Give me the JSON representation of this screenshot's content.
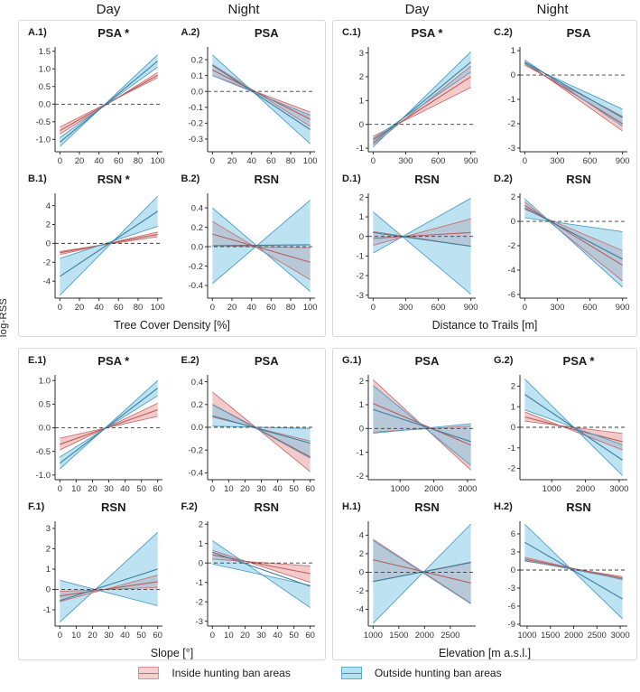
{
  "figure": {
    "ylabel": "log-RSS",
    "column_headers": [
      "Day",
      "Night",
      "Day",
      "Night"
    ],
    "band_styles": {
      "inside": {
        "fill": "rgba(224,128,128,0.42)",
        "stroke": "#cc7070",
        "center": "#b85c5c",
        "legend_fill": "#f6d0d0",
        "legend_stroke": "#dc9090",
        "legend_line": "#c96b6b"
      },
      "outside": {
        "fill": "rgba(124,199,232,0.50)",
        "stroke": "#4e9fc6",
        "center": "#3a7f9f",
        "legend_fill": "#b7e2f2",
        "legend_stroke": "#5aaecf",
        "legend_line": "#3f94bb"
      }
    },
    "legend": {
      "items": [
        {
          "group": "inside",
          "label": "Inside hunting ban areas"
        },
        {
          "group": "outside",
          "label": "Outside hunting ban areas"
        }
      ]
    }
  },
  "chart_data": [
    {
      "type": "ribbon",
      "xlabel": "Tree Cover Density [%]",
      "panels": [
        {
          "id": "A.1)",
          "title": "PSA *",
          "xlim": [
            0,
            100
          ],
          "xticks": [
            0,
            20,
            40,
            60,
            80,
            100
          ],
          "ylim": [
            -1.35,
            1.62
          ],
          "yticks": [
            "1.5",
            "1.0",
            "0.5",
            "0.0",
            "-0.5",
            "-1.0"
          ],
          "bands": [
            {
              "group": "inside",
              "left": [
                -0.65,
                -0.85
              ],
              "right": [
                0.9,
                0.75
              ],
              "center": [
                -0.75,
                0.82
              ]
            },
            {
              "group": "outside",
              "left": [
                -0.95,
                -1.2
              ],
              "right": [
                1.4,
                1.05
              ],
              "center": [
                -1.08,
                1.22
              ]
            }
          ]
        },
        {
          "id": "A.2)",
          "title": "PSA",
          "xlim": [
            0,
            100
          ],
          "xticks": [
            0,
            20,
            40,
            60,
            80,
            100
          ],
          "ylim": [
            -0.38,
            0.28
          ],
          "yticks": [
            "0.2",
            "0.1",
            "0.0",
            "-0.1",
            "-0.2",
            "-0.3"
          ],
          "bands": [
            {
              "group": "inside",
              "left": [
                0.17,
                0.1
              ],
              "right": [
                -0.13,
                -0.22
              ],
              "center": [
                0.135,
                -0.175
              ]
            },
            {
              "group": "outside",
              "left": [
                0.23,
                0.1
              ],
              "right": [
                -0.15,
                -0.33
              ],
              "center": [
                0.165,
                -0.24
              ]
            }
          ]
        },
        {
          "id": "B.1)",
          "title": "RSN *",
          "xlim": [
            0,
            100
          ],
          "xticks": [
            0,
            20,
            40,
            60,
            80,
            100
          ],
          "ylim": [
            -5.8,
            5.3
          ],
          "yticks": [
            "4",
            "2",
            "0",
            "-2",
            "-4"
          ],
          "bands": [
            {
              "group": "inside",
              "left": [
                -0.85,
                -1.2
              ],
              "right": [
                1.2,
                0.7
              ],
              "center": [
                -1.0,
                0.95
              ]
            },
            {
              "group": "outside",
              "left": [
                -1.6,
                -5.5
              ],
              "right": [
                5.0,
                1.8
              ],
              "center": [
                -3.5,
                3.4
              ]
            }
          ]
        },
        {
          "id": "B.2)",
          "title": "RSN",
          "xlim": [
            0,
            100
          ],
          "xticks": [
            0,
            20,
            40,
            60,
            80,
            100
          ],
          "ylim": [
            -0.53,
            0.55
          ],
          "yticks": [
            "0.4",
            "0.2",
            "0.0",
            "-0.2",
            "-0.4"
          ],
          "bands": [
            {
              "group": "inside",
              "left": [
                0.26,
                0.01
              ],
              "right": [
                -0.01,
                -0.34
              ],
              "center": [
                0.13,
                -0.16
              ]
            },
            {
              "group": "outside",
              "left": [
                0.4,
                -0.38
              ],
              "right": [
                0.48,
                -0.46
              ],
              "center": [
                0.01,
                0.02
              ]
            }
          ]
        }
      ]
    },
    {
      "type": "ribbon",
      "xlabel": "Distance to Trails [m]",
      "panels": [
        {
          "id": "C.1)",
          "title": "PSA *",
          "xlim": [
            0,
            900
          ],
          "xticks": [
            0,
            300,
            600,
            900
          ],
          "ylim": [
            -1.15,
            3.25
          ],
          "yticks": [
            "3",
            "2",
            "1",
            "0",
            "-1"
          ],
          "bands": [
            {
              "group": "inside",
              "left": [
                -0.5,
                -0.85
              ],
              "right": [
                2.45,
                1.55
              ],
              "center": [
                -0.65,
                2.0
              ]
            },
            {
              "group": "outside",
              "left": [
                -0.6,
                -0.95
              ],
              "right": [
                3.05,
                2.2
              ],
              "center": [
                -0.78,
                2.62
              ]
            }
          ]
        },
        {
          "id": "C.2)",
          "title": "PSA",
          "xlim": [
            0,
            900
          ],
          "xticks": [
            0,
            300,
            600,
            900
          ],
          "ylim": [
            -3.15,
            1.15
          ],
          "yticks": [
            "1",
            "0",
            "-1",
            "-2",
            "-3"
          ],
          "bands": [
            {
              "group": "inside",
              "left": [
                0.55,
                0.4
              ],
              "right": [
                -1.7,
                -2.3
              ],
              "center": [
                0.47,
                -2.0
              ]
            },
            {
              "group": "outside",
              "left": [
                0.62,
                0.45
              ],
              "right": [
                -1.4,
                -2.1
              ],
              "center": [
                0.53,
                -1.75
              ]
            }
          ]
        },
        {
          "id": "D.1)",
          "title": "RSN",
          "xlim": [
            0,
            900
          ],
          "xticks": [
            0,
            300,
            600,
            900
          ],
          "ylim": [
            -3.15,
            2.2
          ],
          "yticks": [
            "2",
            "1",
            "0",
            "-1",
            "-2",
            "-3"
          ],
          "bands": [
            {
              "group": "inside",
              "left": [
                0.25,
                -0.45
              ],
              "right": [
                0.9,
                -0.5
              ],
              "center": [
                -0.1,
                0.2
              ]
            },
            {
              "group": "outside",
              "left": [
                1.25,
                -0.85
              ],
              "right": [
                1.95,
                -2.95
              ],
              "center": [
                0.2,
                -0.5
              ]
            }
          ]
        },
        {
          "id": "D.2)",
          "title": "RSN",
          "xlim": [
            0,
            900
          ],
          "xticks": [
            0,
            300,
            600,
            900
          ],
          "ylim": [
            -6.3,
            2.3
          ],
          "yticks": [
            "2",
            "0",
            "-2",
            "-4",
            "-6"
          ],
          "bands": [
            {
              "group": "inside",
              "left": [
                1.6,
                1.0
              ],
              "right": [
                -2.4,
                -4.9
              ],
              "center": [
                1.3,
                -3.6
              ]
            },
            {
              "group": "outside",
              "left": [
                1.85,
                0.3
              ],
              "right": [
                -0.85,
                -5.4
              ],
              "center": [
                1.1,
                -3.1
              ]
            }
          ]
        }
      ]
    },
    {
      "type": "ribbon",
      "xlabel": "Slope [°]",
      "panels": [
        {
          "id": "E.1)",
          "title": "PSA *",
          "xlim": [
            0,
            60
          ],
          "xticks": [
            0,
            10,
            20,
            30,
            40,
            50,
            60
          ],
          "ylim": [
            -1.1,
            1.12
          ],
          "yticks": [
            "1.0",
            "0.5",
            "0.0",
            "-0.5",
            "-1.0"
          ],
          "bands": [
            {
              "group": "inside",
              "left": [
                -0.22,
                -0.47
              ],
              "right": [
                0.52,
                0.24
              ],
              "center": [
                -0.35,
                0.38
              ]
            },
            {
              "group": "outside",
              "left": [
                -0.62,
                -0.87
              ],
              "right": [
                1.0,
                0.68
              ],
              "center": [
                -0.75,
                0.84
              ]
            }
          ]
        },
        {
          "id": "E.2)",
          "title": "PSA",
          "xlim": [
            0,
            60
          ],
          "xticks": [
            0,
            10,
            20,
            30,
            40,
            50,
            60
          ],
          "ylim": [
            -0.46,
            0.46
          ],
          "yticks": [
            "0.4",
            "0.2",
            "0.0",
            "-0.2",
            "-0.4"
          ],
          "bands": [
            {
              "group": "inside",
              "left": [
                0.31,
                0.09
              ],
              "right": [
                -0.12,
                -0.39
              ],
              "center": [
                0.2,
                -0.26
              ]
            },
            {
              "group": "outside",
              "left": [
                0.2,
                0.01
              ],
              "right": [
                -0.01,
                -0.27
              ],
              "center": [
                0.1,
                -0.14
              ]
            }
          ]
        },
        {
          "id": "F.1)",
          "title": "RSN",
          "xlim": [
            0,
            60
          ],
          "xticks": [
            0,
            10,
            20,
            30,
            40,
            50,
            60
          ],
          "ylim": [
            -1.8,
            3.35
          ],
          "yticks": [
            "3",
            "2",
            "1",
            "0",
            "-1"
          ],
          "bands": [
            {
              "group": "inside",
              "left": [
                -0.1,
                -0.6
              ],
              "right": [
                0.7,
                0.1
              ],
              "center": [
                -0.32,
                0.38
              ]
            },
            {
              "group": "outside",
              "left": [
                0.45,
                -1.6
              ],
              "right": [
                2.8,
                -0.8
              ],
              "center": [
                -0.55,
                1.0
              ]
            }
          ]
        },
        {
          "id": "F.2)",
          "title": "RSN",
          "xlim": [
            0,
            60
          ],
          "xticks": [
            0,
            10,
            20,
            30,
            40,
            50,
            60
          ],
          "ylim": [
            -3.25,
            2.15
          ],
          "yticks": [
            "2",
            "1",
            "0",
            "-1",
            "-2",
            "-3"
          ],
          "bands": [
            {
              "group": "inside",
              "left": [
                0.65,
                0.2
              ],
              "right": [
                -0.15,
                -1.0
              ],
              "center": [
                0.42,
                -0.55
              ]
            },
            {
              "group": "outside",
              "left": [
                1.15,
                -0.05
              ],
              "right": [
                -1.15,
                -2.3
              ],
              "center": [
                0.55,
                -1.2
              ]
            }
          ]
        }
      ]
    },
    {
      "type": "ribbon",
      "xlabel": "Elevation [m a.s.l.]",
      "panels": [
        {
          "id": "G.1)",
          "title": "PSA",
          "xlim": [
            200,
            3100
          ],
          "xticks": [
            1000,
            2000,
            3000
          ],
          "ylim": [
            -2.15,
            2.25
          ],
          "yticks": [
            "2",
            "1",
            "0",
            "-1",
            "-2"
          ],
          "bands": [
            {
              "group": "inside",
              "left": [
                2.05,
                -0.15
              ],
              "right": [
                0.1,
                -1.75
              ],
              "center": [
                1.05,
                -0.7
              ]
            },
            {
              "group": "outside",
              "left": [
                1.8,
                -0.2
              ],
              "right": [
                0.2,
                -1.55
              ],
              "center": [
                0.8,
                -0.55
              ]
            }
          ]
        },
        {
          "id": "G.2)",
          "title": "PSA *",
          "xlim": [
            200,
            3100
          ],
          "xticks": [
            1000,
            2000,
            3000
          ],
          "ylim": [
            -2.55,
            2.55
          ],
          "yticks": [
            "2",
            "1",
            "0",
            "-1",
            "-2"
          ],
          "bands": [
            {
              "group": "inside",
              "left": [
                0.75,
                0.3
              ],
              "right": [
                -0.3,
                -1.1
              ],
              "center": [
                0.5,
                -0.7
              ]
            },
            {
              "group": "outside",
              "left": [
                2.35,
                0.85
              ],
              "right": [
                -0.85,
                -2.35
              ],
              "center": [
                1.6,
                -1.6
              ]
            }
          ]
        },
        {
          "id": "H.1)",
          "title": "RSN",
          "xlim": [
            1000,
            2900
          ],
          "xticks": [
            1000,
            1500,
            2000,
            2500
          ],
          "ylim": [
            -5.8,
            5.5
          ],
          "yticks": [
            "4",
            "2",
            "0",
            "-2",
            "-4"
          ],
          "bands": [
            {
              "group": "inside",
              "left": [
                3.55,
                -1.0
              ],
              "right": [
                1.1,
                -3.35
              ],
              "center": [
                1.35,
                -1.15
              ]
            },
            {
              "group": "outside",
              "left": [
                3.4,
                -5.5
              ],
              "right": [
                5.2,
                -3.4
              ],
              "center": [
                -1.0,
                1.05
              ]
            }
          ]
        },
        {
          "id": "H.2)",
          "title": "RSN",
          "xlim": [
            950,
            3050
          ],
          "xticks": [
            1000,
            1500,
            2000,
            2500,
            3000
          ],
          "ylim": [
            -9.3,
            8.1
          ],
          "yticks": [
            "6",
            "3",
            "0",
            "-3",
            "-6",
            "-9"
          ],
          "bands": [
            {
              "group": "inside",
              "left": [
                2.1,
                1.5
              ],
              "right": [
                -1.1,
                -1.6
              ],
              "center": [
                1.8,
                -1.35
              ]
            },
            {
              "group": "outside",
              "left": [
                7.6,
                1.6
              ],
              "right": [
                -1.5,
                -8.1
              ],
              "center": [
                4.6,
                -4.8
              ]
            }
          ]
        }
      ]
    }
  ]
}
